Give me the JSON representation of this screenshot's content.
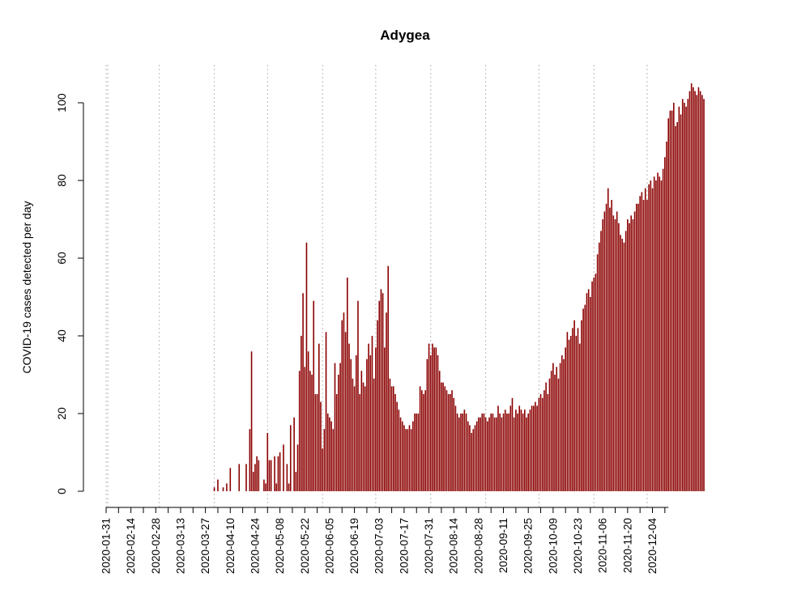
{
  "chart_data": {
    "type": "bar",
    "title": "Adygea",
    "xlabel": "",
    "ylabel": "COVID-19 cases detected per day",
    "ylim": [
      0,
      109
    ],
    "y_ticks": [
      0,
      20,
      40,
      60,
      80,
      100
    ],
    "x_start_date": "2020-01-31",
    "x_end_date": "2020-12-13",
    "x_tick_labels": [
      "2020-01-31",
      "2020-02-14",
      "2020-02-28",
      "2020-03-13",
      "2020-03-27",
      "2020-04-10",
      "2020-04-24",
      "2020-05-08",
      "2020-05-22",
      "2020-06-05",
      "2020-06-19",
      "2020-07-03",
      "2020-07-17",
      "2020-07-31",
      "2020-08-14",
      "2020-08-28",
      "2020-09-11",
      "2020-09-25",
      "2020-10-09",
      "2020-10-23",
      "2020-11-06",
      "2020-11-20",
      "2020-12-04"
    ],
    "month_gridlines": [
      "2020-02-01",
      "2020-03-01",
      "2020-04-01",
      "2020-05-01",
      "2020-06-01",
      "2020-07-01",
      "2020-08-01",
      "2020-09-01",
      "2020-10-01",
      "2020-11-01",
      "2020-12-01"
    ],
    "grid": "vertical dotted at month starts",
    "bar_color": "#8B0000",
    "series": [
      {
        "values": [
          0,
          0,
          0,
          0,
          0,
          0,
          0,
          0,
          0,
          0,
          0,
          0,
          0,
          0,
          0,
          0,
          0,
          0,
          0,
          0,
          0,
          0,
          0,
          0,
          0,
          0,
          0,
          0,
          0,
          0,
          0,
          0,
          0,
          0,
          0,
          0,
          0,
          0,
          0,
          0,
          0,
          0,
          0,
          0,
          0,
          0,
          0,
          0,
          0,
          0,
          0,
          0,
          0,
          0,
          0,
          0,
          0,
          0,
          0,
          0,
          0,
          1,
          0,
          3,
          0,
          0,
          1,
          0,
          2,
          0,
          6,
          0,
          0,
          0,
          0,
          7,
          0,
          0,
          0,
          7,
          0,
          16,
          36,
          5,
          7,
          9,
          8,
          0,
          0,
          3,
          2,
          15,
          8,
          8,
          0,
          9,
          2,
          9,
          10,
          0,
          12,
          0,
          7,
          2,
          17,
          0,
          19,
          5,
          12,
          31,
          40,
          51,
          32,
          64,
          36,
          31,
          30,
          49,
          25,
          25,
          38,
          23,
          11,
          16,
          41,
          20,
          19,
          18,
          16,
          33,
          25,
          30,
          33,
          44,
          46,
          41,
          55,
          38,
          34,
          29,
          27,
          35,
          49,
          25,
          31,
          28,
          27,
          34,
          38,
          35,
          40,
          29,
          37,
          44,
          49,
          52,
          51,
          37,
          46,
          58,
          29,
          27,
          27,
          25,
          23,
          21,
          19,
          18,
          17,
          16,
          16,
          17,
          16,
          18,
          20,
          20,
          20,
          27,
          26,
          25,
          26,
          34,
          38,
          35,
          38,
          37,
          37,
          35,
          31,
          28,
          28,
          27,
          26,
          25,
          25,
          26,
          24,
          22,
          20,
          19,
          20,
          20,
          21,
          20,
          18,
          17,
          15,
          16,
          17,
          18,
          19,
          19,
          20,
          20,
          19,
          18,
          19,
          20,
          20,
          19,
          19,
          22,
          20,
          19,
          20,
          21,
          20,
          20,
          22,
          24,
          19,
          21,
          20,
          22,
          21,
          20,
          21,
          19,
          20,
          21,
          22,
          22,
          23,
          22,
          24,
          25,
          24,
          26,
          28,
          25,
          29,
          31,
          33,
          30,
          32,
          29,
          33,
          35,
          34,
          37,
          41,
          39,
          40,
          42,
          44,
          40,
          42,
          38,
          44,
          47,
          48,
          51,
          52,
          50,
          54,
          55,
          56,
          61,
          64,
          67,
          70,
          72,
          74,
          78,
          73,
          75,
          71,
          70,
          72,
          69,
          66,
          65,
          64,
          67,
          70,
          69,
          71,
          70,
          72,
          74,
          74,
          76,
          77,
          75,
          78,
          75,
          79,
          80,
          78,
          81,
          80,
          82,
          81,
          80,
          83,
          86,
          90,
          96,
          98,
          98,
          100,
          94,
          95,
          99,
          97,
          101,
          100,
          99,
          101,
          103,
          105,
          104,
          103,
          102,
          104,
          103,
          102,
          101
        ]
      }
    ]
  }
}
